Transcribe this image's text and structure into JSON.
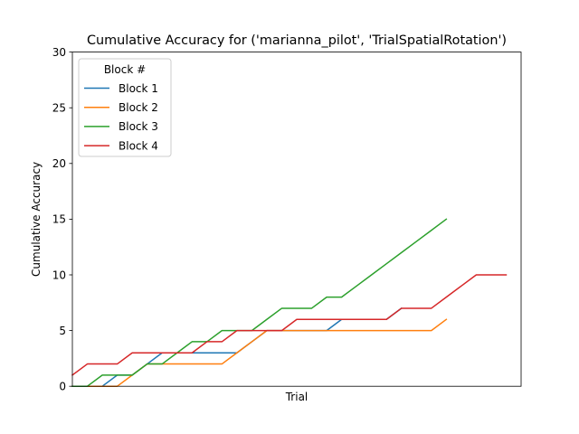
{
  "chart_data": {
    "type": "line",
    "title": "Cumulative Accuracy for ('marianna_pilot', 'TrialSpatialRotation')",
    "xlabel": "Trial",
    "ylabel": "Cumulative Accuracy",
    "ylim": [
      0,
      30
    ],
    "xlim": [
      0,
      30
    ],
    "yticks": [
      0,
      5,
      10,
      15,
      20,
      25,
      30
    ],
    "xticks": [],
    "grid": false,
    "legend": {
      "title": "Block #",
      "position": "upper-left"
    },
    "series": [
      {
        "name": "Block 1",
        "color": "#1f77b4",
        "x": [
          0,
          1,
          2,
          3,
          4,
          5,
          6,
          7,
          8,
          9,
          10,
          11,
          12,
          13,
          14,
          15,
          16,
          17,
          18,
          19,
          20,
          21,
          22
        ],
        "values": [
          0,
          0,
          0,
          1,
          1,
          2,
          3,
          3,
          3,
          3,
          3,
          3,
          4,
          5,
          5,
          5,
          5,
          5,
          6,
          6,
          6,
          6,
          7
        ]
      },
      {
        "name": "Block 2",
        "color": "#ff7f0e",
        "x": [
          0,
          1,
          2,
          3,
          4,
          5,
          6,
          7,
          8,
          9,
          10,
          11,
          12,
          13,
          14,
          15,
          16,
          17,
          18,
          19,
          20,
          21,
          22,
          23,
          24,
          25
        ],
        "values": [
          0,
          0,
          0,
          0,
          1,
          2,
          2,
          2,
          2,
          2,
          2,
          3,
          4,
          5,
          5,
          5,
          5,
          5,
          5,
          5,
          5,
          5,
          5,
          5,
          5,
          6
        ]
      },
      {
        "name": "Block 3",
        "color": "#2ca02c",
        "x": [
          0,
          1,
          2,
          3,
          4,
          5,
          6,
          7,
          8,
          9,
          10,
          11,
          12,
          13,
          14,
          15,
          16,
          17,
          18,
          19,
          20,
          21,
          22,
          23,
          24,
          25
        ],
        "values": [
          0,
          0,
          1,
          1,
          1,
          2,
          2,
          3,
          4,
          4,
          5,
          5,
          5,
          6,
          7,
          7,
          7,
          8,
          8,
          9,
          10,
          11,
          12,
          13,
          14,
          15
        ]
      },
      {
        "name": "Block 4",
        "color": "#d62728",
        "x": [
          0,
          1,
          2,
          3,
          4,
          5,
          6,
          7,
          8,
          9,
          10,
          11,
          12,
          13,
          14,
          15,
          16,
          17,
          18,
          19,
          20,
          21,
          22,
          23,
          24,
          25,
          26,
          27,
          28,
          29
        ],
        "values": [
          1,
          2,
          2,
          2,
          3,
          3,
          3,
          3,
          3,
          4,
          4,
          5,
          5,
          5,
          5,
          6,
          6,
          6,
          6,
          6,
          6,
          6,
          7,
          7,
          7,
          8,
          9,
          10,
          10,
          10
        ]
      }
    ]
  }
}
